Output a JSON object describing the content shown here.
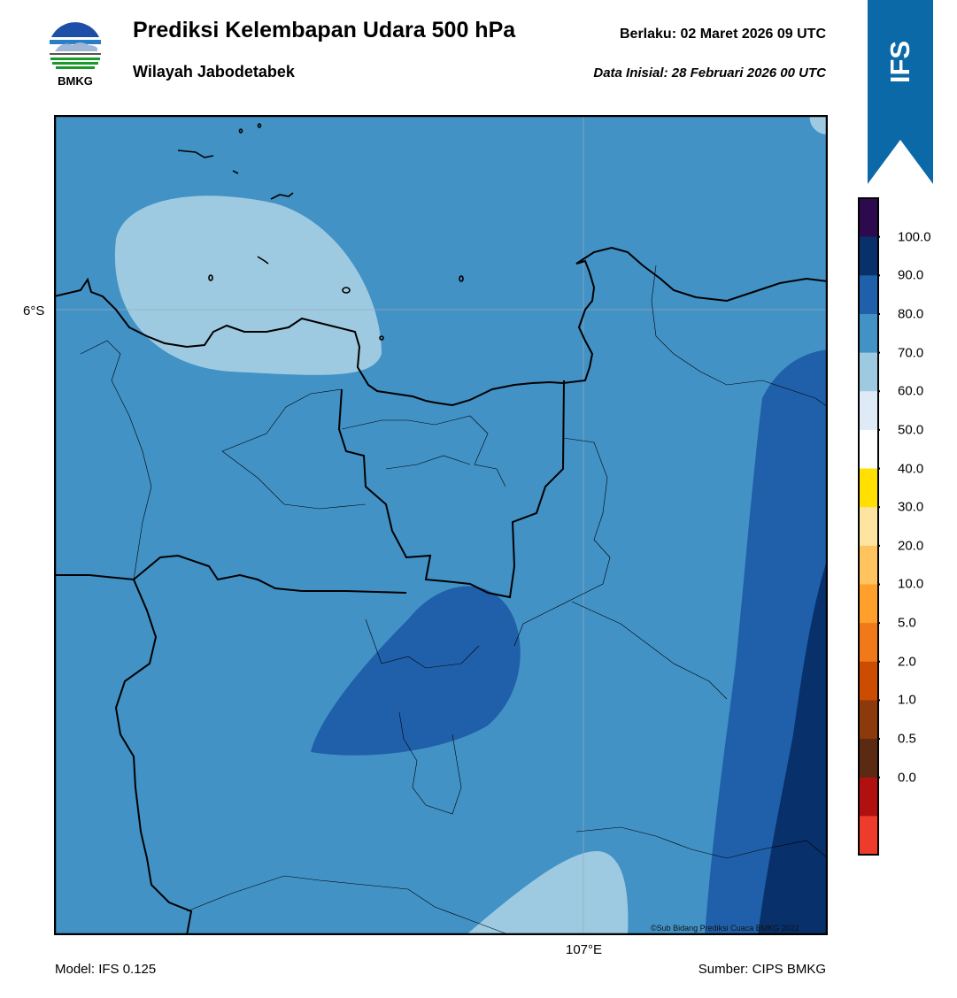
{
  "header": {
    "logo_text": "BMKG",
    "title": "Prediksi Kelembapan Udara 500 hPa",
    "subtitle": "Wilayah Jabodetabek",
    "valid_label": "Berlaku:  02 Maret 2026 09 UTC",
    "init_label": "Data Inisial:  28 Februari 2026 00 UTC"
  },
  "badge": {
    "text": "IFS",
    "color": "#0b69a8"
  },
  "map": {
    "lat_label": "6°S",
    "lon_label": "107°E",
    "credit": "©Sub Bidang Prediksi Cuaca BMKG 2022",
    "background_color": "#4292c6"
  },
  "footer": {
    "model": "Model: IFS 0.125",
    "source": "Sumber: CIPS BMKG"
  },
  "colorbar": {
    "labels": [
      "100.0",
      "90.0",
      "80.0",
      "70.0",
      "60.0",
      "50.0",
      "40.0",
      "30.0",
      "20.0",
      "10.0",
      "5.0",
      "2.0",
      "1.0",
      "0.5",
      "0.0"
    ],
    "colors": [
      "#2d0a4e",
      "#08306b",
      "#2060aa",
      "#4292c6",
      "#9ecae1",
      "#deebf7",
      "#ffffff",
      "#ffe000",
      "#ffe3a0",
      "#ffc460",
      "#ff9f2c",
      "#f07a1a",
      "#cc4c02",
      "#8c3a0c",
      "#5a2a12",
      "#b01010",
      "#ee3b2b"
    ]
  }
}
